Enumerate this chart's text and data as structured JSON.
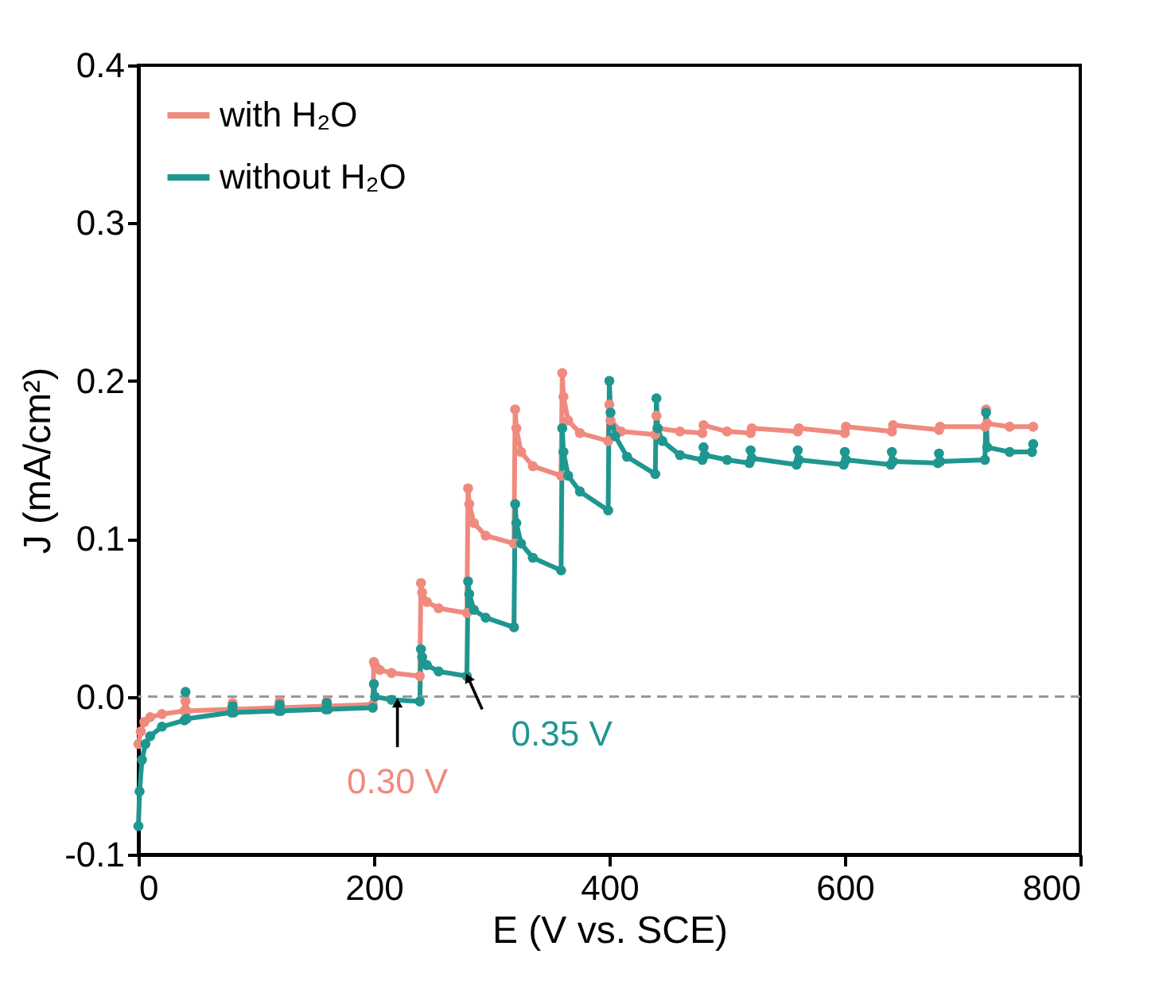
{
  "chart_data": {
    "type": "line",
    "xlabel": "E (V vs. SCE)",
    "ylabel": "J (mA/cm²)",
    "xlim": [
      0,
      800
    ],
    "xticks": [
      0,
      200,
      400,
      600,
      800
    ],
    "ylim": [
      -0.1,
      0.4
    ],
    "yticks": [
      {
        "value": -0.1,
        "label": "-0.1"
      },
      {
        "value": 0,
        "label": "0.0"
      },
      {
        "value": 0.1,
        "label": "0.1"
      },
      {
        "value": 0.2,
        "label": "0.2"
      },
      {
        "value": 0.3,
        "label": "0.3"
      },
      {
        "value": 0.4,
        "label": "0.4"
      }
    ],
    "grid": false,
    "legend": "top left",
    "marker": "circle",
    "line_style": "solid",
    "series": [
      {
        "name": "with H₂O",
        "color": "#f08a7e",
        "x": [
          0,
          2,
          5,
          10,
          20,
          39,
          40,
          41,
          79,
          80,
          81,
          119,
          120,
          121,
          159,
          160,
          161,
          199,
          200,
          201,
          205,
          215,
          239,
          240,
          241,
          245,
          255,
          279,
          280,
          281,
          285,
          295,
          319,
          320,
          321,
          325,
          335,
          359,
          360,
          361,
          365,
          375,
          399,
          400,
          401,
          410,
          439,
          440,
          441,
          460,
          479,
          480,
          500,
          520,
          521,
          560,
          561,
          600,
          601,
          640,
          641,
          680,
          681,
          719,
          720,
          721,
          740,
          760
        ],
        "values": [
          -0.03,
          -0.022,
          -0.016,
          -0.013,
          -0.011,
          -0.009,
          -0.003,
          -0.009,
          -0.008,
          -0.004,
          -0.008,
          -0.007,
          -0.003,
          -0.007,
          -0.006,
          -0.003,
          -0.006,
          -0.005,
          0.022,
          0.02,
          0.017,
          0.015,
          0.013,
          0.072,
          0.066,
          0.06,
          0.056,
          0.053,
          0.132,
          0.122,
          0.11,
          0.102,
          0.097,
          0.182,
          0.17,
          0.155,
          0.146,
          0.14,
          0.205,
          0.19,
          0.175,
          0.167,
          0.162,
          0.185,
          0.175,
          0.168,
          0.166,
          0.178,
          0.17,
          0.168,
          0.167,
          0.172,
          0.168,
          0.167,
          0.17,
          0.168,
          0.17,
          0.167,
          0.171,
          0.168,
          0.172,
          0.169,
          0.171,
          0.171,
          0.182,
          0.173,
          0.171,
          0.171
        ]
      },
      {
        "name": "without H₂O",
        "color": "#1f9690",
        "x": [
          0,
          1,
          3,
          6,
          10,
          20,
          39,
          40,
          41,
          79,
          80,
          81,
          119,
          120,
          121,
          159,
          160,
          161,
          199,
          200,
          201,
          215,
          239,
          240,
          241,
          245,
          255,
          279,
          280,
          281,
          285,
          295,
          319,
          320,
          321,
          325,
          335,
          359,
          360,
          361,
          365,
          375,
          399,
          400,
          401,
          405,
          415,
          439,
          440,
          441,
          445,
          460,
          479,
          480,
          481,
          500,
          519,
          520,
          521,
          559,
          560,
          561,
          599,
          600,
          601,
          639,
          640,
          641,
          679,
          680,
          681,
          719,
          720,
          721,
          740,
          759,
          760
        ],
        "values": [
          -0.082,
          -0.06,
          -0.04,
          -0.03,
          -0.025,
          -0.019,
          -0.015,
          0.003,
          -0.014,
          -0.01,
          -0.006,
          -0.01,
          -0.009,
          -0.005,
          -0.009,
          -0.008,
          -0.004,
          -0.008,
          -0.007,
          0.008,
          0.0,
          -0.002,
          -0.003,
          0.03,
          0.025,
          0.02,
          0.016,
          0.013,
          0.073,
          0.065,
          0.055,
          0.05,
          0.044,
          0.122,
          0.11,
          0.097,
          0.088,
          0.08,
          0.17,
          0.155,
          0.14,
          0.13,
          0.118,
          0.2,
          0.18,
          0.165,
          0.152,
          0.141,
          0.189,
          0.17,
          0.162,
          0.153,
          0.15,
          0.158,
          0.153,
          0.15,
          0.148,
          0.156,
          0.151,
          0.147,
          0.156,
          0.15,
          0.147,
          0.155,
          0.15,
          0.147,
          0.155,
          0.149,
          0.148,
          0.154,
          0.149,
          0.15,
          0.18,
          0.158,
          0.155,
          0.155,
          0.16
        ]
      }
    ],
    "ref_lines": [
      {
        "axis": "y",
        "value": 0.0,
        "color": "#999999",
        "line_style": "dashed"
      }
    ],
    "annotations": [
      {
        "text": "0.30 V",
        "x": 220,
        "y": -0.004
      },
      {
        "text": "0.35 V",
        "x": 280,
        "y": 0.012
      }
    ]
  }
}
